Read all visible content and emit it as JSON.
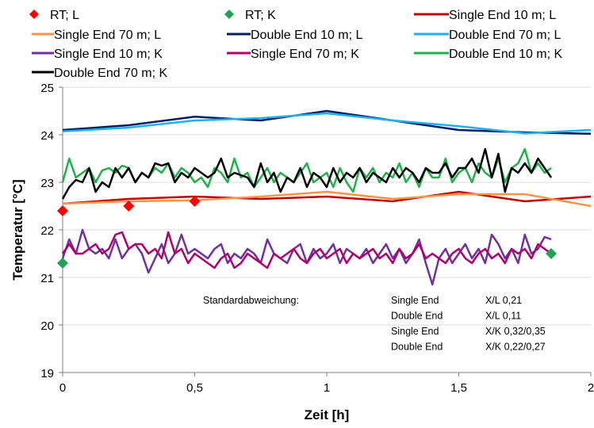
{
  "chart_data": {
    "type": "line",
    "xlabel": "Zeit [h]",
    "ylabel": "Temperatur [°C]",
    "xlim": [
      0,
      2
    ],
    "ylim": [
      19,
      25
    ],
    "xticks": [
      0,
      0.5,
      1,
      1.5,
      2
    ],
    "xtick_labels": [
      "0",
      "0,5",
      "1",
      "1,5",
      "2"
    ],
    "yticks": [
      19,
      20,
      21,
      22,
      23,
      24,
      25
    ],
    "ytick_labels": [
      "19",
      "20",
      "21",
      "22",
      "23",
      "24",
      "25"
    ],
    "grid": "horizontal",
    "legend_position": "top",
    "colors": {
      "rt_l": "#ff0000",
      "rt_k": "#21a355",
      "se10_l": "#c00000",
      "se70_l": "#f79646",
      "de10_l": "#002060",
      "de70_l": "#1fb0f0",
      "se10_k": "#7030a0",
      "se70_k": "#b0006b",
      "de10_k": "#22b04a",
      "de70_k": "#000000"
    },
    "legend": [
      {
        "label": "RT; L",
        "marker": "diamond",
        "color_key": "rt_l"
      },
      {
        "label": "RT; K",
        "marker": "diamond",
        "color_key": "rt_k"
      },
      {
        "label": "Single End 10 m; L",
        "marker": "line",
        "color_key": "se10_l"
      },
      {
        "label": "Single End 70 m; L",
        "marker": "line",
        "color_key": "se70_l"
      },
      {
        "label": "Double End 10 m; L",
        "marker": "line",
        "color_key": "de10_l"
      },
      {
        "label": "Double End 70 m; L",
        "marker": "line",
        "color_key": "de70_l"
      },
      {
        "label": "Single End 10 m; K",
        "marker": "line",
        "color_key": "se10_k"
      },
      {
        "label": "Single End 70 m; K",
        "marker": "line",
        "color_key": "se70_k"
      },
      {
        "label": "Double End 10 m; K",
        "marker": "line",
        "color_key": "de10_k"
      },
      {
        "label": "Double End 70 m; K",
        "marker": "line",
        "color_key": "de70_k"
      }
    ],
    "markers": [
      {
        "name": "RT; L",
        "color_key": "rt_l",
        "points": [
          [
            0,
            22.4
          ],
          [
            0.25,
            22.5
          ],
          [
            0.5,
            22.6
          ]
        ]
      },
      {
        "name": "RT; K",
        "color_key": "rt_k",
        "points": [
          [
            0,
            21.3
          ],
          [
            1.85,
            21.5
          ]
        ]
      }
    ],
    "series": [
      {
        "name": "Single End 10 m; L",
        "color_key": "se10_l",
        "x": [
          0,
          0.25,
          0.5,
          0.75,
          1.0,
          1.25,
          1.5,
          1.75,
          2.0
        ],
        "y": [
          22.55,
          22.65,
          22.7,
          22.65,
          22.7,
          22.6,
          22.8,
          22.6,
          22.7
        ]
      },
      {
        "name": "Single End 70 m; L",
        "color_key": "se70_l",
        "x": [
          0,
          0.25,
          0.5,
          0.75,
          1.0,
          1.25,
          1.5,
          1.75,
          2.0
        ],
        "y": [
          22.55,
          22.6,
          22.62,
          22.7,
          22.8,
          22.65,
          22.75,
          22.75,
          22.5
        ]
      },
      {
        "name": "Double End 10 m; L",
        "color_key": "de10_l",
        "x": [
          0,
          0.25,
          0.5,
          0.75,
          1.0,
          1.25,
          1.5,
          1.75,
          2.0
        ],
        "y": [
          24.1,
          24.2,
          24.38,
          24.3,
          24.5,
          24.3,
          24.1,
          24.05,
          24.02
        ]
      },
      {
        "name": "Double End 70 m; L",
        "color_key": "de70_l",
        "x": [
          0,
          0.25,
          0.5,
          0.75,
          1.0,
          1.25,
          1.5,
          1.75,
          2.0
        ],
        "y": [
          24.07,
          24.15,
          24.3,
          24.35,
          24.45,
          24.3,
          24.18,
          24.03,
          24.1
        ]
      },
      {
        "name": "Single End 10 m; K",
        "color_key": "se10_k",
        "x": [
          0,
          0.025,
          0.05,
          0.075,
          0.1,
          0.125,
          0.15,
          0.175,
          0.2,
          0.225,
          0.25,
          0.275,
          0.3,
          0.325,
          0.35,
          0.375,
          0.4,
          0.425,
          0.45,
          0.475,
          0.5,
          0.525,
          0.55,
          0.575,
          0.6,
          0.625,
          0.65,
          0.675,
          0.7,
          0.725,
          0.75,
          0.775,
          0.8,
          0.825,
          0.85,
          0.875,
          0.9,
          0.925,
          0.95,
          0.975,
          1.0,
          1.025,
          1.05,
          1.075,
          1.1,
          1.125,
          1.15,
          1.175,
          1.2,
          1.225,
          1.25,
          1.275,
          1.3,
          1.325,
          1.35,
          1.375,
          1.4,
          1.425,
          1.45,
          1.475,
          1.5,
          1.525,
          1.55,
          1.575,
          1.6,
          1.625,
          1.65,
          1.675,
          1.7,
          1.725,
          1.75,
          1.775,
          1.8,
          1.825,
          1.85
        ],
        "y": [
          21.4,
          21.8,
          21.5,
          22.0,
          21.6,
          21.5,
          21.6,
          21.4,
          21.8,
          21.4,
          21.6,
          21.7,
          21.5,
          21.1,
          21.4,
          21.7,
          21.3,
          21.5,
          21.9,
          21.5,
          21.6,
          21.5,
          21.4,
          21.6,
          21.7,
          21.3,
          21.5,
          21.4,
          21.6,
          21.5,
          21.3,
          21.8,
          21.5,
          21.4,
          21.3,
          21.6,
          21.7,
          21.3,
          21.6,
          21.4,
          21.5,
          21.7,
          21.3,
          21.6,
          21.5,
          21.4,
          21.6,
          21.3,
          21.5,
          21.7,
          21.4,
          21.6,
          21.3,
          21.5,
          21.8,
          21.3,
          20.85,
          21.4,
          21.6,
          21.3,
          21.5,
          21.7,
          21.4,
          21.6,
          21.3,
          21.9,
          21.7,
          21.4,
          21.6,
          21.3,
          21.9,
          21.5,
          21.6,
          21.85,
          21.8
        ]
      },
      {
        "name": "Single End 70 m; K",
        "color_key": "se70_k",
        "x": [
          0,
          0.025,
          0.05,
          0.075,
          0.1,
          0.125,
          0.15,
          0.175,
          0.2,
          0.225,
          0.25,
          0.275,
          0.3,
          0.325,
          0.35,
          0.375,
          0.4,
          0.425,
          0.45,
          0.475,
          0.5,
          0.525,
          0.55,
          0.575,
          0.6,
          0.625,
          0.65,
          0.675,
          0.7,
          0.725,
          0.75,
          0.775,
          0.8,
          0.825,
          0.85,
          0.875,
          0.9,
          0.925,
          0.95,
          0.975,
          1.0,
          1.025,
          1.05,
          1.075,
          1.1,
          1.125,
          1.15,
          1.175,
          1.2,
          1.225,
          1.25,
          1.275,
          1.3,
          1.325,
          1.35,
          1.375,
          1.4,
          1.425,
          1.45,
          1.475,
          1.5,
          1.525,
          1.55,
          1.575,
          1.6,
          1.625,
          1.65,
          1.675,
          1.7,
          1.725,
          1.75,
          1.775,
          1.8,
          1.825,
          1.85
        ],
        "y": [
          21.5,
          21.7,
          21.5,
          21.5,
          21.6,
          21.7,
          21.5,
          21.6,
          21.9,
          21.95,
          21.6,
          21.7,
          21.7,
          21.5,
          21.6,
          21.4,
          21.95,
          21.5,
          21.6,
          21.3,
          21.5,
          21.4,
          21.3,
          21.2,
          21.4,
          21.5,
          21.2,
          21.3,
          21.5,
          21.4,
          21.3,
          21.2,
          21.5,
          21.4,
          21.5,
          21.6,
          21.4,
          21.3,
          21.5,
          21.6,
          21.4,
          21.5,
          21.6,
          21.3,
          21.5,
          21.4,
          21.5,
          21.6,
          21.4,
          21.5,
          21.3,
          21.6,
          21.4,
          21.5,
          21.7,
          21.4,
          21.5,
          21.4,
          21.3,
          21.5,
          21.6,
          21.4,
          21.3,
          21.5,
          21.6,
          21.4,
          21.5,
          21.3,
          21.6,
          21.5,
          21.6,
          21.4,
          21.7,
          21.6,
          21.5
        ]
      },
      {
        "name": "Double End 10 m; K",
        "color_key": "de10_k",
        "x": [
          0,
          0.025,
          0.05,
          0.075,
          0.1,
          0.125,
          0.15,
          0.175,
          0.2,
          0.225,
          0.25,
          0.275,
          0.3,
          0.325,
          0.35,
          0.375,
          0.4,
          0.425,
          0.45,
          0.475,
          0.5,
          0.525,
          0.55,
          0.575,
          0.6,
          0.625,
          0.65,
          0.675,
          0.7,
          0.725,
          0.75,
          0.775,
          0.8,
          0.825,
          0.85,
          0.875,
          0.9,
          0.925,
          0.95,
          0.975,
          1.0,
          1.025,
          1.05,
          1.075,
          1.1,
          1.125,
          1.15,
          1.175,
          1.2,
          1.225,
          1.25,
          1.275,
          1.3,
          1.325,
          1.35,
          1.375,
          1.4,
          1.425,
          1.45,
          1.475,
          1.5,
          1.525,
          1.55,
          1.575,
          1.6,
          1.625,
          1.65,
          1.675,
          1.7,
          1.725,
          1.75,
          1.775,
          1.8,
          1.825,
          1.85
        ],
        "y": [
          23.0,
          23.5,
          23.1,
          23.2,
          23.3,
          23.0,
          23.25,
          23.3,
          23.2,
          23.35,
          23.3,
          23.0,
          23.2,
          23.1,
          23.3,
          23.2,
          23.4,
          23.1,
          23.3,
          23.2,
          23.0,
          23.1,
          22.9,
          23.3,
          23.2,
          23.0,
          23.5,
          23.1,
          23.2,
          22.9,
          23.1,
          23.3,
          23.0,
          23.2,
          23.1,
          23.0,
          23.2,
          23.4,
          23.0,
          23.1,
          23.2,
          22.9,
          23.3,
          23.0,
          22.8,
          23.3,
          23.1,
          23.3,
          23.0,
          23.2,
          23.1,
          23.4,
          23.0,
          23.2,
          22.9,
          23.3,
          23.1,
          23.1,
          23.5,
          23.0,
          23.2,
          23.3,
          23.0,
          23.4,
          23.2,
          23.1,
          23.5,
          23.0,
          23.3,
          23.4,
          23.7,
          23.2,
          23.4,
          23.2,
          23.3
        ]
      },
      {
        "name": "Double End 70 m; K",
        "color_key": "de70_k",
        "x": [
          0,
          0.025,
          0.05,
          0.075,
          0.1,
          0.125,
          0.15,
          0.175,
          0.2,
          0.225,
          0.25,
          0.275,
          0.3,
          0.325,
          0.35,
          0.375,
          0.4,
          0.425,
          0.45,
          0.475,
          0.5,
          0.525,
          0.55,
          0.575,
          0.6,
          0.625,
          0.65,
          0.675,
          0.7,
          0.725,
          0.75,
          0.775,
          0.8,
          0.825,
          0.85,
          0.875,
          0.9,
          0.925,
          0.95,
          0.975,
          1.0,
          1.025,
          1.05,
          1.075,
          1.1,
          1.125,
          1.15,
          1.175,
          1.2,
          1.225,
          1.25,
          1.275,
          1.3,
          1.325,
          1.35,
          1.375,
          1.4,
          1.425,
          1.45,
          1.475,
          1.5,
          1.525,
          1.55,
          1.575,
          1.6,
          1.625,
          1.65,
          1.675,
          1.7,
          1.725,
          1.75,
          1.775,
          1.8,
          1.825,
          1.85
        ],
        "y": [
          22.65,
          22.9,
          23.05,
          23.0,
          23.3,
          22.8,
          23.0,
          22.9,
          23.3,
          23.1,
          23.3,
          23.0,
          23.2,
          23.1,
          23.4,
          23.35,
          23.4,
          23.0,
          23.2,
          23.1,
          23.3,
          23.2,
          23.1,
          23.2,
          23.5,
          23.1,
          23.2,
          23.15,
          23.1,
          22.9,
          23.4,
          23.0,
          23.2,
          22.8,
          23.1,
          23.0,
          23.3,
          22.9,
          23.2,
          23.1,
          22.9,
          23.3,
          23.0,
          23.2,
          23.1,
          23.3,
          23.0,
          23.2,
          23.1,
          23.0,
          23.3,
          23.1,
          23.3,
          23.2,
          23.0,
          23.3,
          23.2,
          23.2,
          23.4,
          23.1,
          23.3,
          23.3,
          23.5,
          23.2,
          23.7,
          23.1,
          23.6,
          22.8,
          23.3,
          23.2,
          23.4,
          23.2,
          23.5,
          23.3,
          23.1
        ]
      }
    ],
    "annotation": {
      "title": "Standardabweichung:",
      "rows": [
        {
          "type": "Single End",
          "value": "X/L  0,21"
        },
        {
          "type": "Double End",
          "value": "X/L  0,11"
        },
        {
          "type": "Single End",
          "value": "X/K  0,32/0,35"
        },
        {
          "type": "Double End",
          "value": "X/K  0,22/0,27"
        }
      ]
    }
  }
}
